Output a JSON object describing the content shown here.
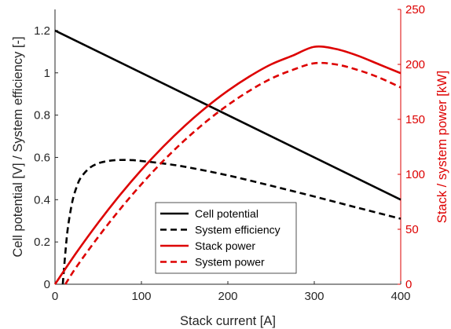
{
  "chart_data": {
    "type": "line",
    "title": "",
    "xlabel": "Stack current [A]",
    "ylabel_left": "Cell potential [V] / System efficiency [-]",
    "ylabel_right": "Stack / system power [kW]",
    "xlim": [
      0,
      400
    ],
    "ylim_left": [
      0,
      1.3
    ],
    "ylim_right": [
      0,
      250
    ],
    "x_ticks": [
      "0",
      "100",
      "200",
      "300",
      "400"
    ],
    "y_left_ticks": [
      "0",
      "0.2",
      "0.4",
      "0.6",
      "0.8",
      "1",
      "1.2"
    ],
    "y_right_ticks": [
      "0",
      "50",
      "100",
      "150",
      "200",
      "250"
    ],
    "grid": false,
    "legend_position": "lower-center",
    "colors": {
      "black": "#000000",
      "red": "#dd0000"
    },
    "series": [
      {
        "name": "Cell potential",
        "axis": "left",
        "color": "#000000",
        "style": "solid",
        "x": [
          0,
          400
        ],
        "y": [
          1.2,
          0.4
        ]
      },
      {
        "name": "System efficiency",
        "axis": "left",
        "color": "#000000",
        "style": "dashed",
        "x": [
          9,
          12,
          15,
          20,
          25,
          30,
          40,
          50,
          60,
          70,
          80,
          90,
          100,
          120,
          150,
          200,
          250,
          300,
          350,
          400
        ],
        "y": [
          0.0,
          0.15,
          0.27,
          0.39,
          0.46,
          0.505,
          0.55,
          0.572,
          0.582,
          0.587,
          0.588,
          0.587,
          0.583,
          0.574,
          0.556,
          0.515,
          0.466,
          0.415,
          0.362,
          0.31
        ]
      },
      {
        "name": "Stack power",
        "axis": "right",
        "color": "#dd0000",
        "style": "solid",
        "x": [
          0,
          25,
          50,
          75,
          100,
          125,
          150,
          175,
          200,
          225,
          250,
          275,
          300,
          325,
          350,
          375,
          400
        ],
        "y": [
          0,
          29,
          56,
          81,
          104,
          125,
          144,
          161,
          176,
          189,
          200,
          208,
          216,
          214,
          208,
          200,
          192
        ]
      },
      {
        "name": "System power",
        "axis": "right",
        "color": "#dd0000",
        "style": "dashed",
        "x": [
          12,
          25,
          50,
          75,
          100,
          125,
          150,
          175,
          200,
          225,
          250,
          275,
          300,
          325,
          350,
          375,
          400
        ],
        "y": [
          0,
          16,
          43,
          68,
          91,
          112,
          131,
          148,
          163,
          176,
          187,
          195,
          201,
          200,
          195,
          188,
          179
        ]
      }
    ]
  }
}
